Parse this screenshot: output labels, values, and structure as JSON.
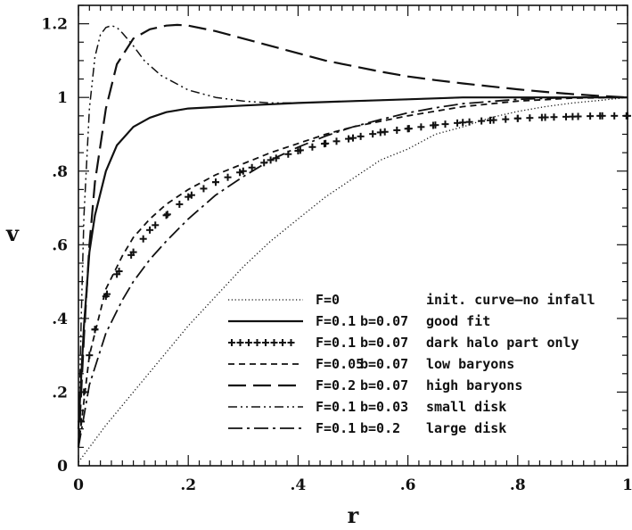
{
  "chart_data": {
    "type": "line",
    "title": "",
    "xlabel": "r",
    "ylabel": "v",
    "xlim": [
      0,
      1
    ],
    "ylim": [
      0,
      1.25
    ],
    "grid": false,
    "legend_position": "bottom-right",
    "xticks": [
      0,
      0.2,
      0.4,
      0.6,
      0.8,
      1
    ],
    "xtick_labels": [
      "0",
      ".2",
      ".4",
      ".6",
      ".8",
      "1"
    ],
    "yticks": [
      0,
      0.2,
      0.4,
      0.6,
      0.8,
      1,
      1.2
    ],
    "ytick_labels": [
      "0",
      ".2",
      ".4",
      ".6",
      ".8",
      "1",
      "1.2"
    ],
    "series": [
      {
        "label": "F=0",
        "param_b": "",
        "description": "init. curve–no infall",
        "style": "dotted",
        "x": [
          0,
          0.02,
          0.05,
          0.1,
          0.15,
          0.2,
          0.25,
          0.3,
          0.35,
          0.4,
          0.45,
          0.5,
          0.55,
          0.6,
          0.65,
          0.7,
          0.75,
          0.8,
          0.85,
          0.9,
          0.95,
          1.0
        ],
        "y": [
          0.01,
          0.05,
          0.11,
          0.2,
          0.29,
          0.38,
          0.46,
          0.54,
          0.61,
          0.67,
          0.73,
          0.78,
          0.83,
          0.86,
          0.9,
          0.92,
          0.945,
          0.962,
          0.975,
          0.985,
          0.992,
          1.0
        ]
      },
      {
        "label": "F=0.1",
        "param_b": "b=0.07",
        "description": "good fit",
        "style": "solid",
        "x": [
          0,
          0.01,
          0.02,
          0.03,
          0.05,
          0.07,
          0.1,
          0.13,
          0.16,
          0.2,
          0.3,
          0.4,
          0.5,
          0.6,
          0.7,
          0.8,
          0.9,
          1.0
        ],
        "y": [
          0.1,
          0.38,
          0.58,
          0.68,
          0.8,
          0.87,
          0.92,
          0.945,
          0.96,
          0.97,
          0.978,
          0.985,
          0.99,
          0.995,
          1.0,
          1.0,
          1.0,
          1.0
        ]
      },
      {
        "label": "F=0.1",
        "param_b": "b=0.07",
        "description": "dark halo part only",
        "style": "plus",
        "x": [
          0.005,
          0.01,
          0.02,
          0.03,
          0.05,
          0.07,
          0.1,
          0.13,
          0.16,
          0.2,
          0.25,
          0.3,
          0.35,
          0.4,
          0.45,
          0.5,
          0.55,
          0.6,
          0.65,
          0.7,
          0.75,
          0.8,
          0.85,
          0.9,
          0.95,
          1.0
        ],
        "y": [
          0.12,
          0.2,
          0.3,
          0.37,
          0.46,
          0.52,
          0.58,
          0.64,
          0.68,
          0.73,
          0.77,
          0.8,
          0.83,
          0.855,
          0.875,
          0.89,
          0.905,
          0.915,
          0.925,
          0.932,
          0.938,
          0.943,
          0.946,
          0.948,
          0.95,
          0.95
        ]
      },
      {
        "label": "F=0.05",
        "param_b": "b=0.07",
        "description": "low baryons",
        "style": "short-dashed",
        "x": [
          0,
          0.02,
          0.05,
          0.08,
          0.1,
          0.13,
          0.16,
          0.2,
          0.25,
          0.3,
          0.35,
          0.4,
          0.45,
          0.5,
          0.6,
          0.7,
          0.8,
          0.9,
          1.0
        ],
        "y": [
          0.05,
          0.3,
          0.48,
          0.57,
          0.62,
          0.67,
          0.71,
          0.75,
          0.79,
          0.82,
          0.85,
          0.875,
          0.9,
          0.92,
          0.95,
          0.975,
          0.99,
          0.998,
          1.0
        ]
      },
      {
        "label": "F=0.2",
        "param_b": "b=0.07",
        "description": "high baryons",
        "style": "long-dashed",
        "x": [
          0,
          0.01,
          0.02,
          0.03,
          0.05,
          0.07,
          0.1,
          0.13,
          0.16,
          0.18,
          0.2,
          0.25,
          0.3,
          0.35,
          0.4,
          0.45,
          0.5,
          0.55,
          0.6,
          0.65,
          0.7,
          0.75,
          0.8,
          0.85,
          0.9,
          0.95,
          1.0
        ],
        "y": [
          0.05,
          0.35,
          0.6,
          0.77,
          0.97,
          1.09,
          1.16,
          1.185,
          1.195,
          1.197,
          1.195,
          1.18,
          1.16,
          1.14,
          1.12,
          1.1,
          1.085,
          1.07,
          1.057,
          1.047,
          1.038,
          1.03,
          1.022,
          1.015,
          1.009,
          1.004,
          1.0
        ]
      },
      {
        "label": "F=0.1",
        "param_b": "b=0.03",
        "description": "small disk",
        "style": "dash-dot-dot",
        "x": [
          0,
          0.005,
          0.01,
          0.02,
          0.03,
          0.04,
          0.05,
          0.06,
          0.07,
          0.08,
          0.1,
          0.12,
          0.15,
          0.2,
          0.25,
          0.3,
          0.35,
          0.4,
          0.5,
          0.6,
          0.7,
          0.8,
          0.9,
          1.0
        ],
        "y": [
          0.05,
          0.4,
          0.68,
          0.97,
          1.11,
          1.17,
          1.19,
          1.195,
          1.19,
          1.175,
          1.14,
          1.1,
          1.06,
          1.02,
          1.0,
          0.99,
          0.985,
          0.985,
          0.99,
          0.995,
          1.0,
          1.0,
          1.0,
          1.0
        ]
      },
      {
        "label": "F=0.1",
        "param_b": "b=0.2",
        "description": "large disk",
        "style": "dash-dot",
        "x": [
          0,
          0.02,
          0.05,
          0.08,
          0.1,
          0.13,
          0.16,
          0.2,
          0.25,
          0.3,
          0.35,
          0.4,
          0.45,
          0.5,
          0.55,
          0.6,
          0.65,
          0.7,
          0.8,
          0.9,
          1.0
        ],
        "y": [
          0.05,
          0.22,
          0.36,
          0.45,
          0.5,
          0.56,
          0.61,
          0.67,
          0.735,
          0.785,
          0.83,
          0.865,
          0.895,
          0.92,
          0.94,
          0.958,
          0.972,
          0.983,
          0.995,
          1.0,
          1.0
        ]
      }
    ]
  }
}
